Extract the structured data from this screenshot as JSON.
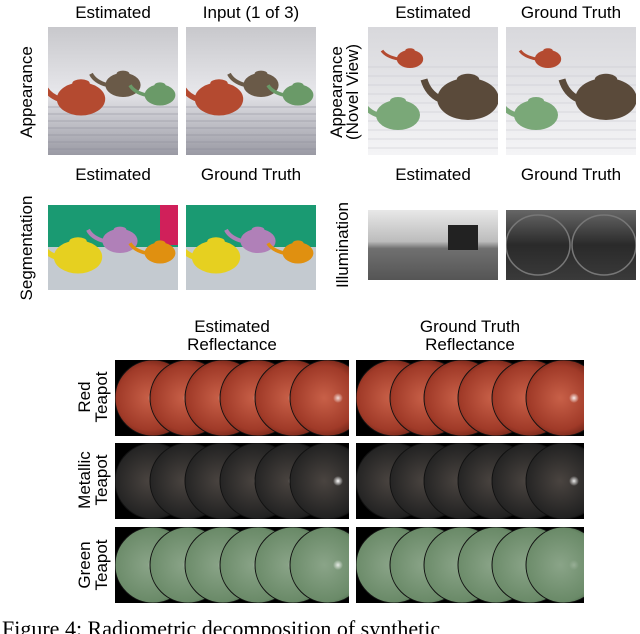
{
  "appearance": {
    "label": "Appearance",
    "headers": [
      "Estimated",
      "Input (1 of 3)"
    ]
  },
  "novel_view": {
    "label": [
      "Appearance",
      "(Novel View)"
    ],
    "headers": [
      "Estimated",
      "Ground Truth"
    ]
  },
  "segmentation": {
    "label": "Segmentation",
    "headers": [
      "Estimated",
      "Ground Truth"
    ]
  },
  "illumination": {
    "label": "Illumination",
    "headers": [
      "Estimated",
      "Ground Truth"
    ]
  },
  "reflectance": {
    "headers": [
      [
        "Estimated",
        "Reflectance"
      ],
      [
        "Ground Truth",
        "Reflectance"
      ]
    ],
    "rows": [
      [
        "Red",
        "Teapot"
      ],
      [
        "Metallic",
        "Teapot"
      ],
      [
        "Green",
        "Teapot"
      ]
    ]
  },
  "caption": "Figure 4: Radiometric decomposition of synthetic"
}
